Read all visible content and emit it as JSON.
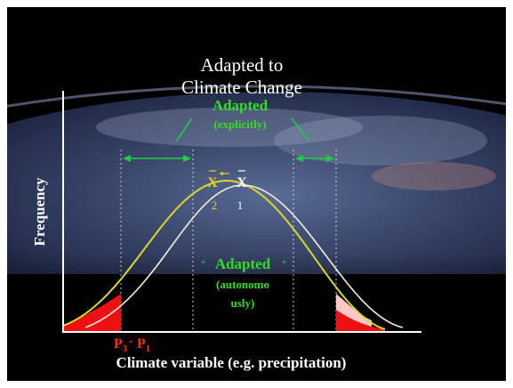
{
  "title": {
    "line1": "Adapted to",
    "line2": "Climate Change"
  },
  "explicit": {
    "label": "Adapted",
    "sublabel": "(explicitly)"
  },
  "autonomous": {
    "label": "Adapted",
    "line2": "(autonomo",
    "line3": "usly)"
  },
  "means": {
    "x_bar_2": "X",
    "x_bar_1": "X",
    "idx_2": "2",
    "idx_1": "1"
  },
  "tails": {
    "p_left": "P",
    "p_left_sub": "3",
    "p_right": "P",
    "p_right_sub": "1",
    "sep": "-"
  },
  "axes": {
    "ylabel": "Frequency",
    "xlabel": "Climate variable (e.g. precipitation)"
  },
  "colors": {
    "background": "#000000",
    "axis": "#ffffff",
    "curve_current": "#f0f0e0",
    "curve_shifted": "#d8d82a",
    "adapted_text": "#33dd22",
    "arrow": "#22cc44",
    "tail_fill": "#ee1111",
    "tail_fill_light": "#ffc8c8",
    "p_label": "#ff3300",
    "mean_2": "#e8d020"
  }
}
